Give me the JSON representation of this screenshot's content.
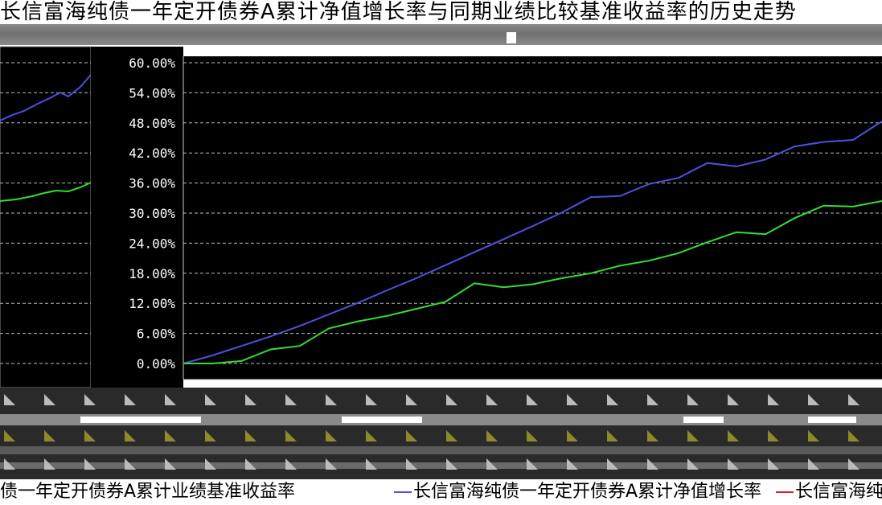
{
  "chart_title": "长信富海纯债一年定开债券A累计净值增长率与同期业绩比较基准收益率的历史走势",
  "chart_data": {
    "type": "line",
    "title": "长信富海纯债一年定开债券A累计净值增长率与同期业绩比较基准收益率的历史走势",
    "xlabel": "",
    "ylabel": "",
    "ylim": [
      0,
      60
    ],
    "y_ticks": [
      "60.00%",
      "54.00%",
      "48.00%",
      "42.00%",
      "36.00%",
      "30.00%",
      "24.00%",
      "18.00%",
      "12.00%",
      "6.00%",
      "0.00%"
    ],
    "grid": true,
    "series": [
      {
        "name": "长信富海纯债一年定开债券A累计净值增长率",
        "color": "#4f4fe0",
        "values": [
          0,
          1.6,
          3.5,
          5.4,
          7.5,
          9.8,
          12.1,
          14.6,
          17.0,
          19.6,
          22.2,
          24.8,
          27.4,
          30.1,
          33.2,
          33.4,
          35.8,
          37.0,
          40.0,
          39.3,
          40.7,
          43.3,
          44.2,
          44.6,
          48.3
        ]
      },
      {
        "name": "长信富海纯债一年定开债券A累计业绩基准收益率",
        "color": "#33dd33",
        "values": [
          0,
          0.0,
          0.5,
          2.8,
          3.5,
          7.0,
          8.4,
          9.5,
          10.9,
          12.3,
          16.0,
          15.2,
          15.8,
          17.0,
          18.0,
          19.5,
          20.5,
          22.0,
          24.2,
          26.2,
          25.8,
          29.0,
          31.5,
          31.3,
          32.4
        ]
      }
    ]
  },
  "inset": {
    "series_colors": [
      "#4f4fe0",
      "#33dd33"
    ]
  },
  "legend": {
    "item1": "债一年定开债券A累计业绩基准收益率",
    "item2": "长信富海纯债一年定开债券A累计净值增长率",
    "item3": "长信富海纯",
    "colors": [
      "#4f4fe0",
      "#dd2222"
    ]
  }
}
